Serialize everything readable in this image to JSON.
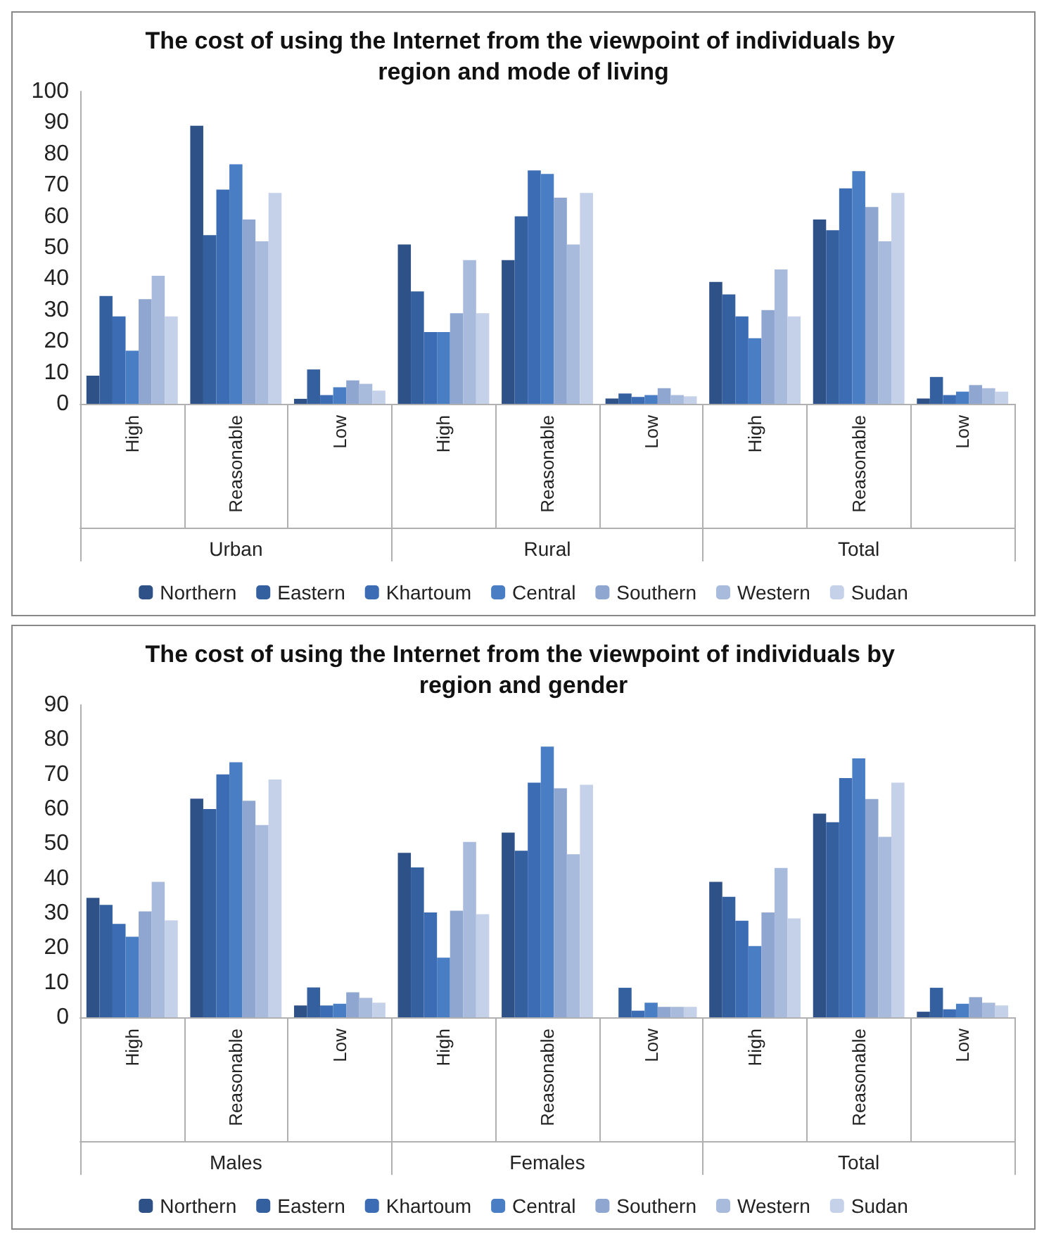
{
  "chart_data": [
    {
      "type": "bar",
      "title": "The cost of using the Internet from the viewpoint of individuals by region and mode of living",
      "categories": [
        "High",
        "Reasonable",
        "Low",
        "High",
        "Reasonable",
        "Low",
        "High",
        "Reasonable",
        "Low"
      ],
      "annotations": [
        "Urban",
        "Rural",
        "Total"
      ],
      "ylim": [
        0,
        100
      ],
      "yticks": [
        0,
        10,
        20,
        30,
        40,
        50,
        60,
        70,
        80,
        90,
        100
      ],
      "grid": false,
      "legend": "bottom",
      "series": [
        {
          "name": "Northern",
          "color": "#2e5288",
          "values": [
            9,
            89,
            1.6,
            51,
            46,
            1.7,
            39,
            59,
            1.7
          ]
        },
        {
          "name": "Eastern",
          "color": "#34609f",
          "values": [
            34.5,
            54,
            11,
            36,
            60,
            3.3,
            35,
            55.6,
            8.6
          ]
        },
        {
          "name": "Khartoum",
          "color": "#3c6cb4",
          "values": [
            28,
            68.6,
            2.8,
            23,
            74.7,
            2.2,
            28,
            69,
            2.8
          ]
        },
        {
          "name": "Central",
          "color": "#4a7ec4",
          "values": [
            17,
            76.7,
            5.3,
            23,
            73.6,
            2.8,
            21,
            74.5,
            3.9
          ]
        },
        {
          "name": "Southern",
          "color": "#8ea6d0",
          "values": [
            33.5,
            59,
            7.5,
            29,
            66,
            5,
            30,
            63,
            6
          ]
        },
        {
          "name": "Western",
          "color": "#a9bbdc",
          "values": [
            41,
            52,
            6.4,
            46,
            51,
            2.8,
            43,
            52,
            5
          ]
        },
        {
          "name": "Sudan",
          "color": "#c5d1e8",
          "values": [
            28,
            67.5,
            4.2,
            29,
            67.5,
            2.4,
            28,
            67.5,
            3.9
          ]
        }
      ]
    },
    {
      "type": "bar",
      "title": "The cost of using the Internet from the viewpoint of individuals by region and gender",
      "categories": [
        "High",
        "Reasonable",
        "Low",
        "High",
        "Reasonable",
        "Low",
        "High",
        "Reasonable",
        "Low"
      ],
      "annotations": [
        "Males",
        "Females",
        "Total"
      ],
      "ylim": [
        0,
        90
      ],
      "yticks": [
        0,
        10,
        20,
        30,
        40,
        50,
        60,
        70,
        80,
        90
      ],
      "grid": false,
      "legend": "bottom",
      "series": [
        {
          "name": "Northern",
          "color": "#2e5288",
          "values": [
            34.4,
            63,
            3.4,
            47.4,
            53.2,
            0,
            39,
            58.7,
            1.6
          ]
        },
        {
          "name": "Eastern",
          "color": "#34609f",
          "values": [
            32.4,
            60,
            8.6,
            43.2,
            48,
            8.5,
            34.7,
            56.2,
            8.5
          ]
        },
        {
          "name": "Khartoum",
          "color": "#3c6cb4",
          "values": [
            26.9,
            70,
            3.4,
            30.2,
            67.6,
            1.9,
            27.8,
            68.9,
            2.3
          ]
        },
        {
          "name": "Central",
          "color": "#4a7ec4",
          "values": [
            23.2,
            73.5,
            3.9,
            17.2,
            78,
            4.2,
            20.5,
            74.6,
            3.9
          ]
        },
        {
          "name": "Southern",
          "color": "#8ea6d0",
          "values": [
            30.5,
            62.4,
            7.2,
            30.7,
            66,
            3,
            30.2,
            62.9,
            5.8
          ]
        },
        {
          "name": "Western",
          "color": "#a9bbdc",
          "values": [
            39,
            55.4,
            5.6,
            50.5,
            47,
            3,
            43,
            52,
            4.2
          ]
        },
        {
          "name": "Sudan",
          "color": "#c5d1e8",
          "values": [
            27.9,
            68.5,
            4.2,
            29.7,
            67,
            3,
            28.5,
            67.6,
            3.4
          ]
        }
      ]
    }
  ]
}
